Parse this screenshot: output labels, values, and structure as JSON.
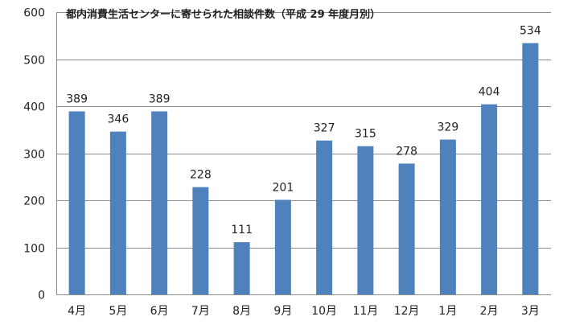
{
  "chart_data": {
    "type": "bar",
    "title": "都内消費生活センターに寄せられた相談件数（平成 29 年度月別）",
    "categories": [
      "4月",
      "5月",
      "6月",
      "7月",
      "8月",
      "9月",
      "10月",
      "11月",
      "12月",
      "1月",
      "2月",
      "3月"
    ],
    "values": [
      389,
      346,
      389,
      228,
      111,
      201,
      327,
      315,
      278,
      329,
      404,
      534
    ],
    "ylim": [
      0,
      600
    ],
    "yticks": [
      0,
      100,
      200,
      300,
      400,
      500,
      600
    ],
    "xlabel": "",
    "ylabel": "",
    "grid": true,
    "data_labels": true,
    "bar_color": "#4f81bd"
  }
}
